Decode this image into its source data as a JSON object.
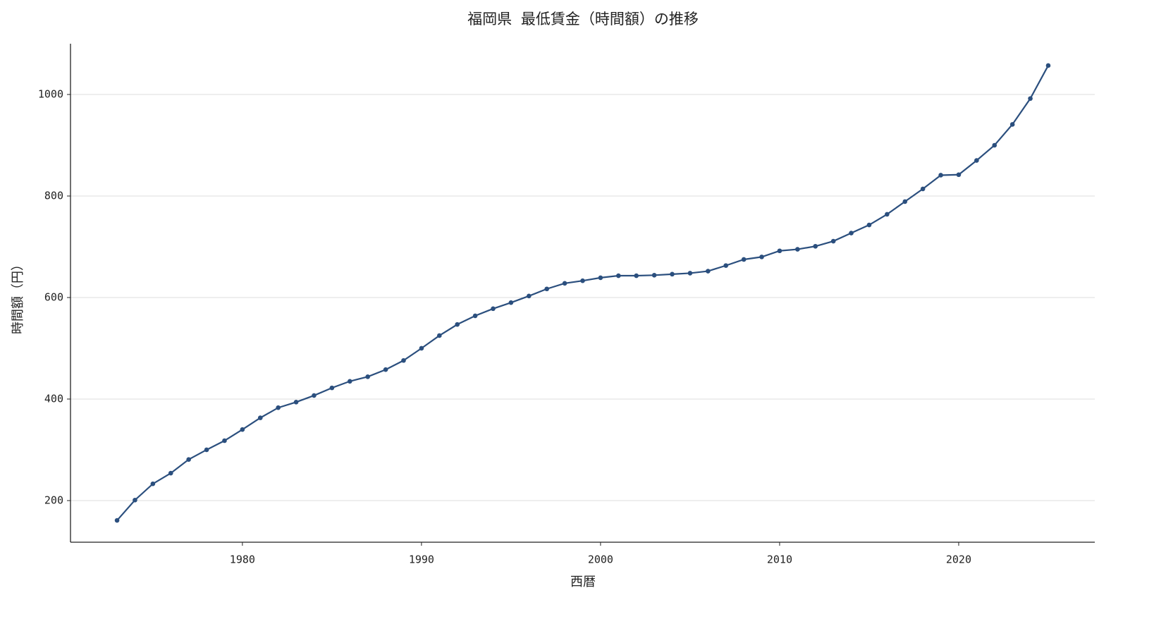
{
  "chart_data": {
    "type": "line",
    "title": "福岡県 最低賃金（時間額）の推移",
    "x_label": "西暦",
    "y_label": "時間額（円）",
    "x": [
      1973,
      1974,
      1975,
      1976,
      1977,
      1978,
      1979,
      1980,
      1981,
      1982,
      1983,
      1984,
      1985,
      1986,
      1987,
      1988,
      1989,
      1990,
      1991,
      1992,
      1993,
      1994,
      1995,
      1996,
      1997,
      1998,
      1999,
      2000,
      2001,
      2002,
      2003,
      2004,
      2005,
      2006,
      2007,
      2008,
      2009,
      2010,
      2011,
      2012,
      2013,
      2014,
      2015,
      2016,
      2017,
      2018,
      2019,
      2020,
      2021,
      2022,
      2023,
      2024,
      2025
    ],
    "values": [
      161,
      201,
      233,
      254,
      281,
      300,
      318,
      340,
      363,
      383,
      394,
      407,
      422,
      435,
      444,
      458,
      476,
      500,
      525,
      547,
      564,
      578,
      590,
      603,
      617,
      628,
      633,
      639,
      643,
      643,
      644,
      646,
      648,
      652,
      663,
      675,
      680,
      692,
      695,
      701,
      711,
      727,
      743,
      764,
      789,
      814,
      841,
      842,
      870,
      900,
      941,
      992,
      1057
    ],
    "color": "#2b4f7e",
    "xlim": [
      1970.4,
      2027.6
    ],
    "xticks": [
      1980,
      1990,
      2000,
      2010,
      2020
    ],
    "ylim": [
      118,
      1100
    ],
    "yticks": [
      200,
      400,
      600,
      800,
      1000
    ],
    "grid": true
  }
}
